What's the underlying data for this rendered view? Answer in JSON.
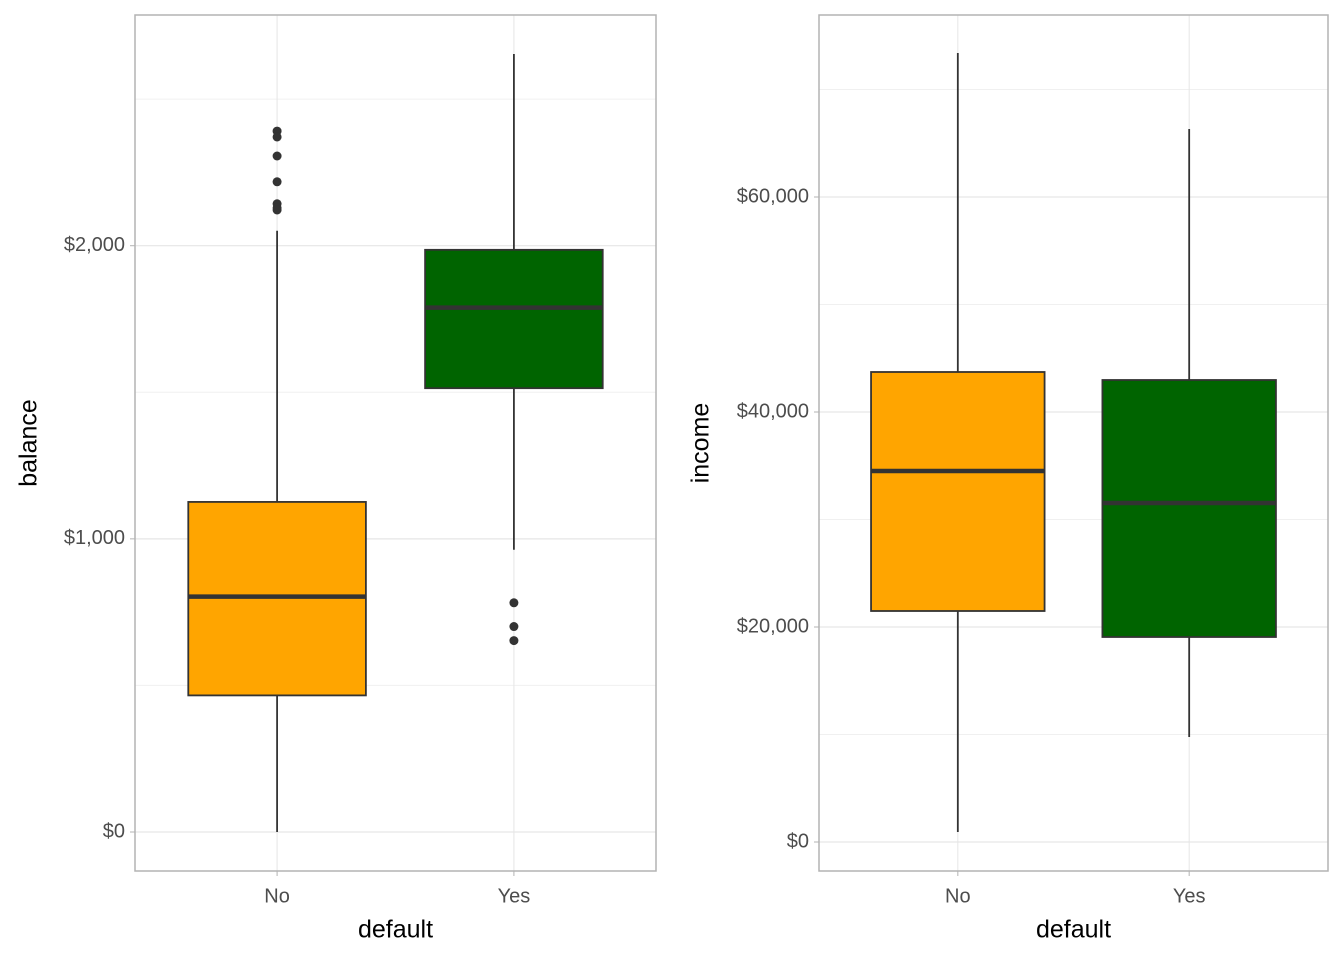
{
  "chart_data": [
    {
      "type": "box",
      "x_label": "default",
      "y_label": "balance",
      "categories": [
        "No",
        "Yes"
      ],
      "boxes": [
        {
          "color": "#ffa500",
          "whisker_low": 0,
          "q1": 466,
          "median": 803,
          "q3": 1126,
          "whisker_high": 2051,
          "outliers": [
            2391,
            2371,
            2306,
            2218,
            2143,
            2129,
            2122
          ]
        },
        {
          "color": "#006400",
          "whisker_low": 963,
          "q1": 1514,
          "median": 1789,
          "q3": 1986,
          "whisker_high": 2654,
          "outliers": [
            782,
            701,
            653
          ]
        }
      ],
      "ylim": [
        -133,
        2787
      ],
      "yticks": [
        {
          "value": 0,
          "label": "$0"
        },
        {
          "value": 1000,
          "label": "$1,000"
        },
        {
          "value": 2000,
          "label": "$2,000"
        }
      ],
      "minor_grid": [
        500,
        1500,
        2500
      ],
      "grid": true
    },
    {
      "type": "box",
      "x_label": "default",
      "y_label": "income",
      "categories": [
        "No",
        "Yes"
      ],
      "boxes": [
        {
          "color": "#ffa500",
          "whisker_low": 930,
          "q1": 21488,
          "median": 34512,
          "q3": 43721,
          "whisker_high": 73395,
          "outliers": []
        },
        {
          "color": "#006400",
          "whisker_low": 9767,
          "q1": 19070,
          "median": 31535,
          "q3": 42977,
          "whisker_high": 66326,
          "outliers": []
        }
      ],
      "ylim": [
        -2698,
        76930
      ],
      "yticks": [
        {
          "value": 0,
          "label": "$0"
        },
        {
          "value": 20000,
          "label": "$20,000"
        },
        {
          "value": 40000,
          "label": "$40,000"
        },
        {
          "value": 60000,
          "label": "$60,000"
        }
      ],
      "minor_grid": [
        10000,
        30000,
        50000,
        70000
      ],
      "grid": true
    }
  ]
}
